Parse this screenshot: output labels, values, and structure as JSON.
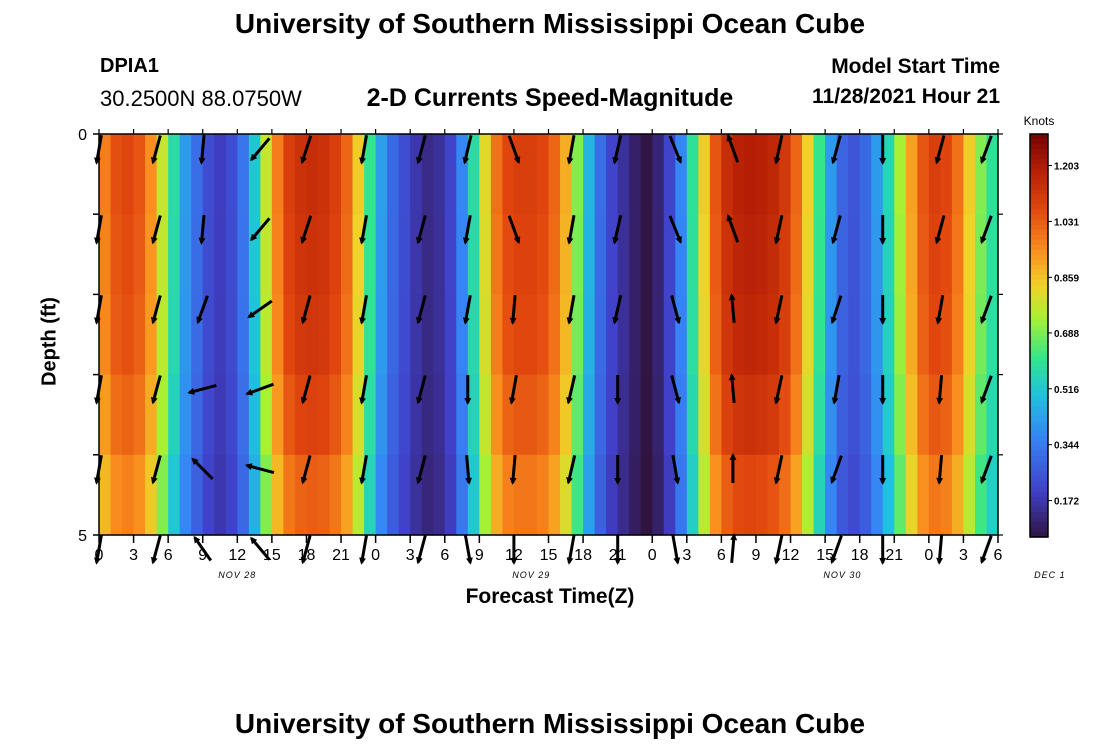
{
  "page": {
    "title": "University of Southern Mississippi Ocean Cube",
    "footer_title": "University of Southern Mississippi Ocean Cube"
  },
  "header": {
    "station": "DPIA1",
    "coordinates": "30.2500N  88.0750W",
    "subtitle": "2-D Currents Speed-Magnitude",
    "model_start_label": "Model Start Time",
    "model_start_value": "11/28/2021 Hour 21"
  },
  "chart_data": {
    "type": "heatmap",
    "title": "2-D Currents Speed-Magnitude",
    "xlabel": "Forecast Time(Z)",
    "ylabel": "Depth (ft)",
    "ylim": [
      0,
      5
    ],
    "y_tick_labels": [
      "0",
      "5"
    ],
    "x_tick_labels": [
      "0",
      "3",
      "6",
      "9",
      "12",
      "15",
      "18",
      "21",
      "0",
      "3",
      "6",
      "9",
      "12",
      "15",
      "18",
      "21",
      "0",
      "3",
      "6",
      "9",
      "12",
      "15",
      "18",
      "21",
      "0",
      "3",
      "6"
    ],
    "date_labels": [
      {
        "label": "NOV 28",
        "x_index": 4
      },
      {
        "label": "NOV 29",
        "x_index": 12.5
      },
      {
        "label": "NOV 30",
        "x_index": 21.5
      },
      {
        "label": "DEC 1",
        "x_index": 27.5
      }
    ],
    "x_range_hours": [
      0,
      78
    ],
    "depth_rows": 5,
    "colorbar": {
      "unit": "Knots",
      "ticks": [
        "1.203",
        "1.031",
        "0.859",
        "0.688",
        "0.516",
        "0.344",
        "0.172"
      ],
      "tick_values": [
        1.203,
        1.031,
        0.859,
        0.688,
        0.516,
        0.344,
        0.172
      ],
      "min": 0.06,
      "max": 1.3
    },
    "speed_profile_hours": [
      0,
      1,
      2,
      3,
      4,
      5,
      6,
      7,
      8,
      9,
      10,
      11,
      12,
      13,
      14,
      15,
      16,
      17,
      18,
      19,
      20,
      21,
      22,
      23,
      24,
      25,
      26,
      27,
      28,
      29,
      30,
      31,
      32,
      33,
      34,
      35,
      36,
      37,
      38,
      39,
      40,
      41,
      42,
      43,
      44,
      45,
      46,
      47,
      48,
      49,
      50,
      51,
      52,
      53,
      54,
      55,
      56,
      57,
      58,
      59,
      60,
      61,
      62,
      63,
      64,
      65,
      66,
      67,
      68,
      69,
      70,
      71,
      72,
      73,
      74,
      75,
      76,
      77,
      78
    ],
    "speed_profile_knots": [
      0.98,
      1.06,
      1.08,
      1.05,
      0.95,
      0.78,
      0.58,
      0.42,
      0.32,
      0.24,
      0.2,
      0.24,
      0.34,
      0.52,
      0.78,
      0.98,
      1.1,
      1.14,
      1.15,
      1.14,
      1.1,
      1.02,
      0.85,
      0.62,
      0.43,
      0.31,
      0.24,
      0.18,
      0.14,
      0.16,
      0.22,
      0.38,
      0.58,
      0.82,
      1.0,
      1.08,
      1.1,
      1.1,
      1.08,
      1.02,
      0.9,
      0.7,
      0.48,
      0.32,
      0.22,
      0.16,
      0.11,
      0.07,
      0.12,
      0.22,
      0.38,
      0.6,
      0.85,
      1.05,
      1.15,
      1.19,
      1.2,
      1.19,
      1.17,
      1.12,
      1.02,
      0.84,
      0.62,
      0.42,
      0.3,
      0.26,
      0.31,
      0.42,
      0.56,
      0.74,
      0.92,
      1.05,
      1.1,
      1.08,
      1.0,
      0.85,
      0.7,
      0.6,
      0.55
    ],
    "depth_factors": [
      1.0,
      0.99,
      0.98,
      0.95,
      0.9
    ],
    "vector_hours": [
      0,
      5,
      9,
      14,
      18,
      23,
      28,
      32,
      36,
      41,
      45,
      50,
      55,
      59,
      64,
      68,
      73,
      77
    ],
    "vector_angles_deg": [
      [
        100,
        105,
        95,
        130,
        108,
        100,
        105,
        103,
        70,
        100,
        103,
        68,
        250,
        102,
        105,
        90,
        105,
        110
      ],
      [
        100,
        105,
        95,
        130,
        108,
        100,
        105,
        100,
        70,
        100,
        103,
        68,
        250,
        102,
        105,
        90,
        105,
        110
      ],
      [
        100,
        105,
        110,
        145,
        105,
        100,
        105,
        100,
        95,
        100,
        103,
        75,
        265,
        102,
        108,
        90,
        100,
        110
      ],
      [
        100,
        105,
        165,
        160,
        105,
        100,
        105,
        90,
        100,
        103,
        90,
        75,
        265,
        102,
        100,
        90,
        95,
        110
      ],
      [
        100,
        105,
        225,
        195,
        105,
        100,
        105,
        85,
        95,
        103,
        90,
        80,
        270,
        102,
        110,
        90,
        95,
        110
      ],
      [
        100,
        105,
        235,
        230,
        105,
        100,
        105,
        80,
        90,
        100,
        90,
        80,
        275,
        102,
        110,
        90,
        95,
        110
      ]
    ]
  }
}
